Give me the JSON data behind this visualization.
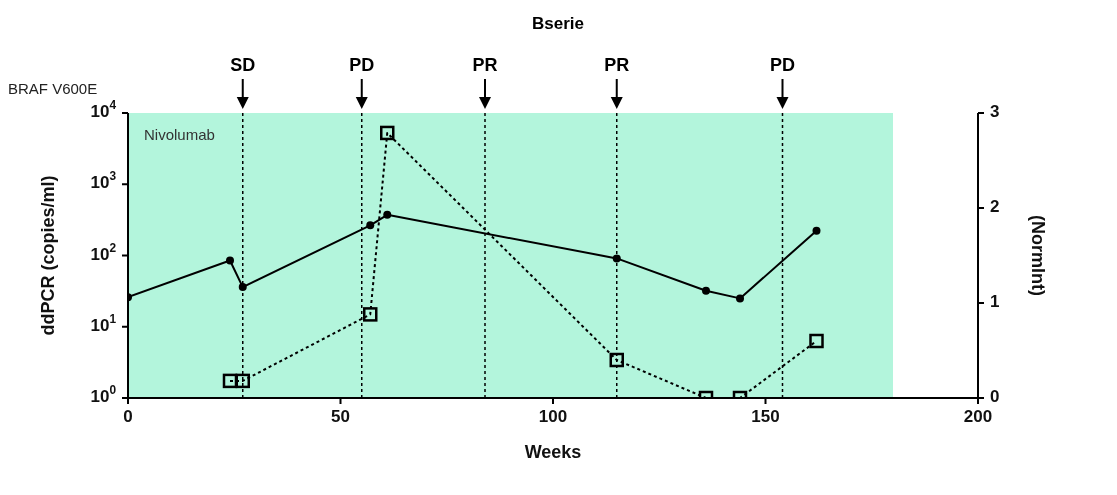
{
  "chart_data": {
    "type": "line",
    "title": "Bserie",
    "xlabel": "Weeks",
    "ylabel": "ddPCR (copies/ml)",
    "y2label": "(NormInt)",
    "annotations": [
      "BRAF V600E"
    ],
    "series": [
      {
        "type": "line",
        "color": "#000000",
        "marker": "circle",
        "line_style": "solid",
        "x": [
          0,
          24,
          27,
          57,
          61,
          115,
          136,
          144,
          162
        ],
        "values": [
          26,
          85,
          36,
          265,
          372,
          91,
          32,
          25,
          222
        ]
      },
      {
        "type": "line",
        "color": "#000000",
        "marker": "square",
        "line_style": "dotted",
        "axis": "y2",
        "x": [
          24,
          27,
          57,
          61,
          115,
          136,
          144,
          162
        ],
        "values": [
          0.18,
          0.18,
          0.88,
          2.79,
          0.4,
          0,
          0,
          0.6
        ]
      }
    ],
    "xlim": [
      0,
      200
    ],
    "xticks": [
      0,
      50,
      100,
      150,
      200
    ],
    "ylim": [
      1,
      10000
    ],
    "yticks": [
      {
        "value": 1,
        "label": "10$^{0}$"
      },
      {
        "value": 10,
        "label": "10$^{1}$"
      },
      {
        "value": 100,
        "label": "10$^{2}$"
      },
      {
        "value": 1000,
        "label": "10$^{3}$"
      },
      {
        "value": 10000,
        "label": "10$^{4}$"
      }
    ],
    "log": "y",
    "y2lim": [
      0,
      3
    ],
    "y2ticks": [
      0,
      1,
      2,
      3
    ],
    "grid": false,
    "ref_lines": [
      {
        "axis": "x",
        "value": 27,
        "label": "SD",
        "color": "#000000",
        "line_style": "dotted"
      },
      {
        "axis": "x",
        "value": 55,
        "label": "PD",
        "color": "#000000",
        "line_style": "dotted"
      },
      {
        "axis": "x",
        "value": 84,
        "label": "PR",
        "color": "#000000",
        "line_style": "dotted"
      },
      {
        "axis": "x",
        "value": 115,
        "label": "PR",
        "color": "#000000",
        "line_style": "dotted"
      },
      {
        "axis": "x",
        "value": 154,
        "label": "PD",
        "color": "#000000",
        "line_style": "dotted"
      }
    ],
    "bands": [
      {
        "axis": "x",
        "from": 0,
        "to": 180,
        "label": "Nivolumab",
        "color": "#b3f5dc"
      }
    ]
  }
}
